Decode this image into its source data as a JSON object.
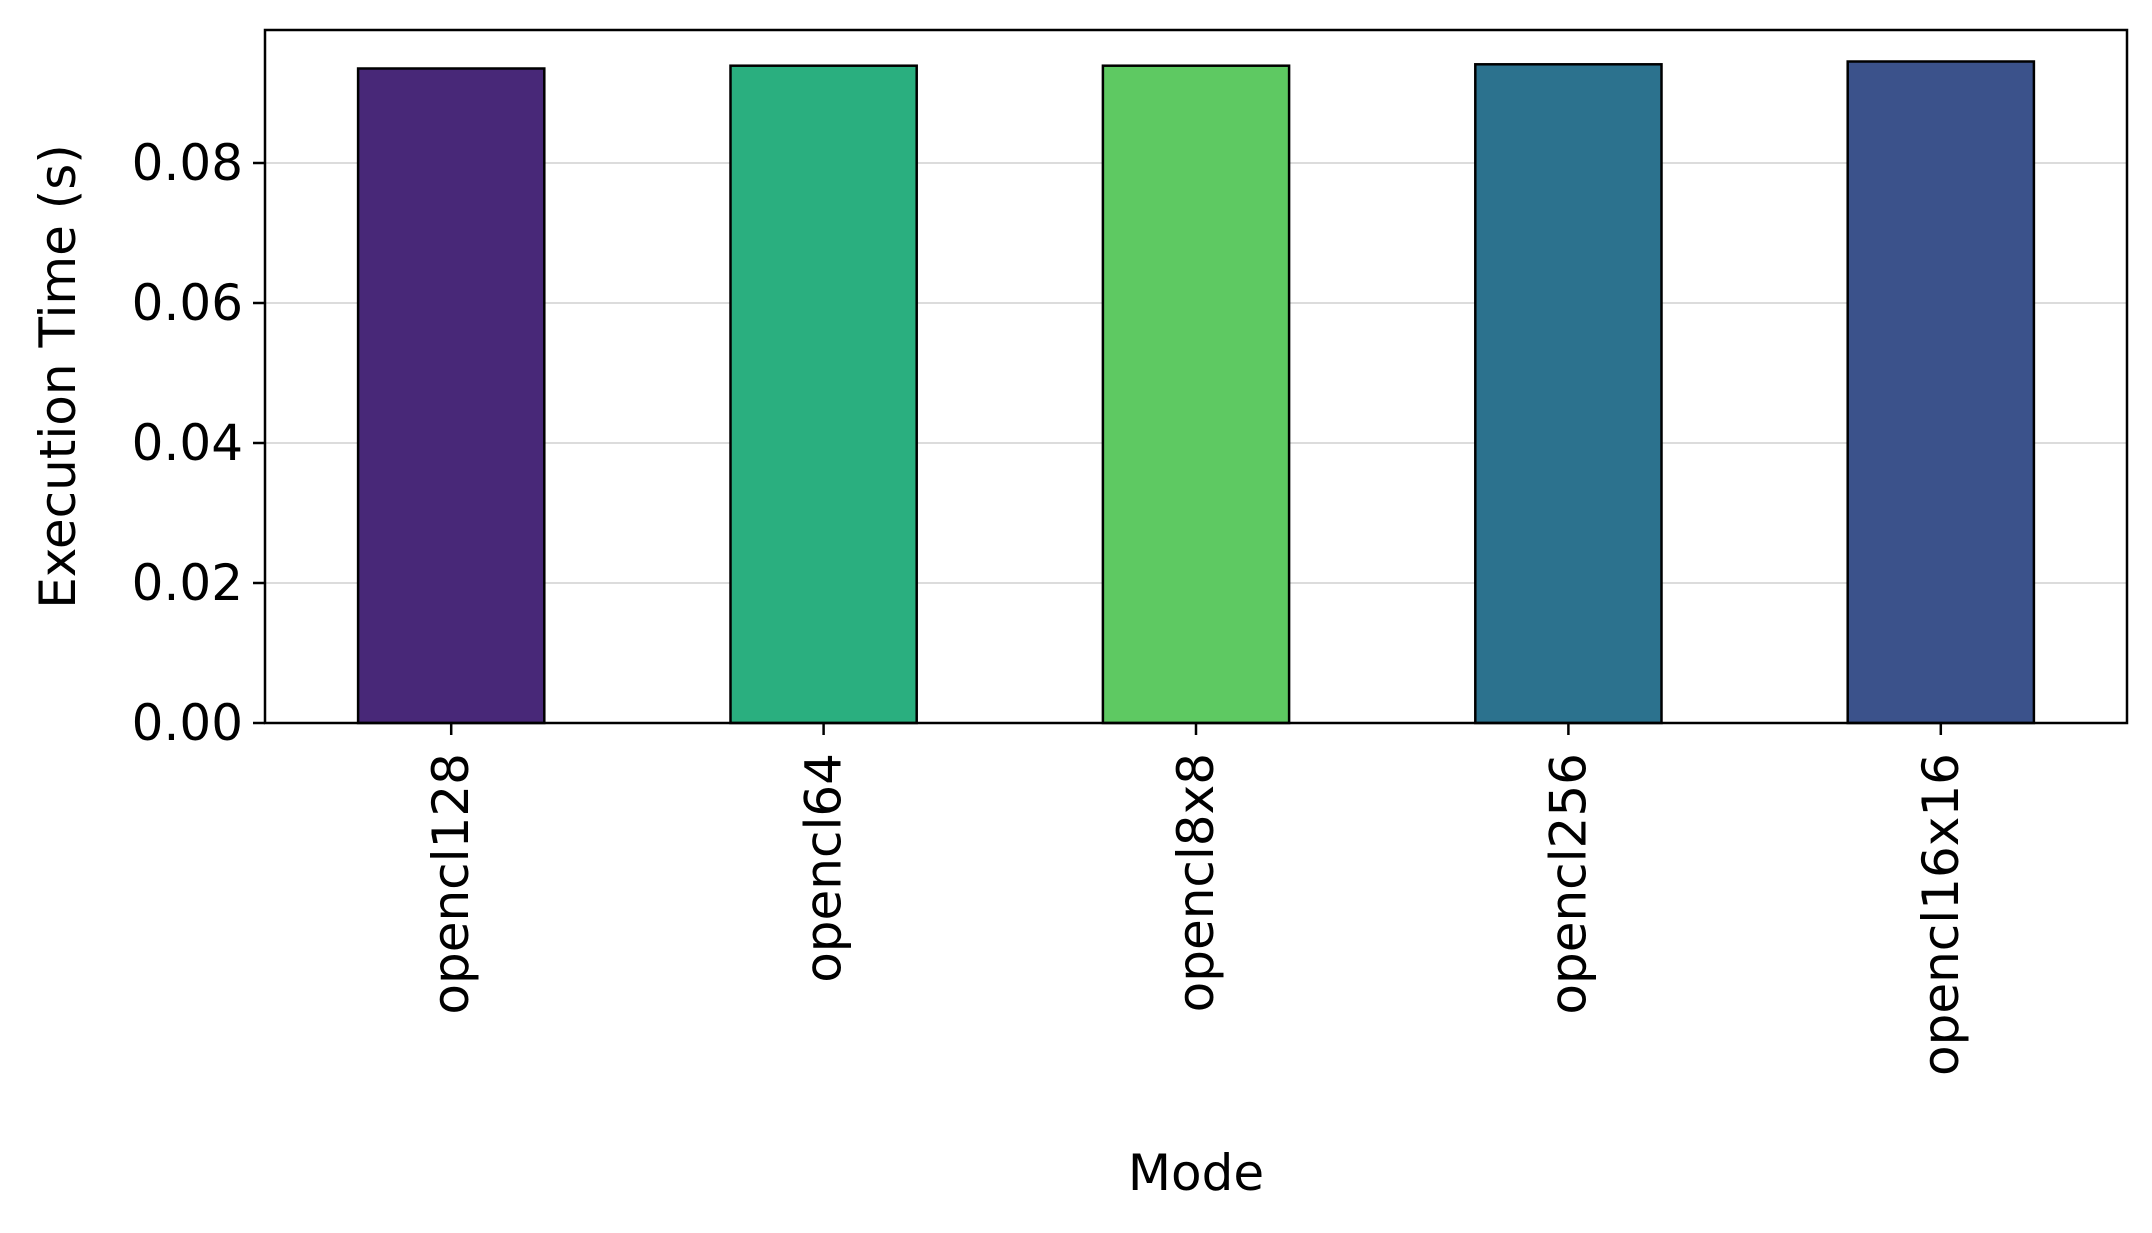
{
  "chart_data": {
    "type": "bar",
    "title": "",
    "xlabel": "Mode",
    "ylabel": "Execution Time (s)",
    "categories": [
      "opencl128",
      "opencl64",
      "opencl8x8",
      "opencl256",
      "opencl16x16"
    ],
    "values": [
      0.0935,
      0.0939,
      0.0939,
      0.0941,
      0.0945
    ],
    "colors": [
      "#482878",
      "#2aaf7f",
      "#5ec962",
      "#2c728e",
      "#3b528b"
    ],
    "ylim": [
      0,
      0.099
    ],
    "yticks": [
      0.0,
      0.02,
      0.04,
      0.06,
      0.08
    ],
    "ytick_labels": [
      "0.00",
      "0.02",
      "0.04",
      "0.06",
      "0.08"
    ],
    "grid": "horizontal",
    "legend": "none"
  }
}
